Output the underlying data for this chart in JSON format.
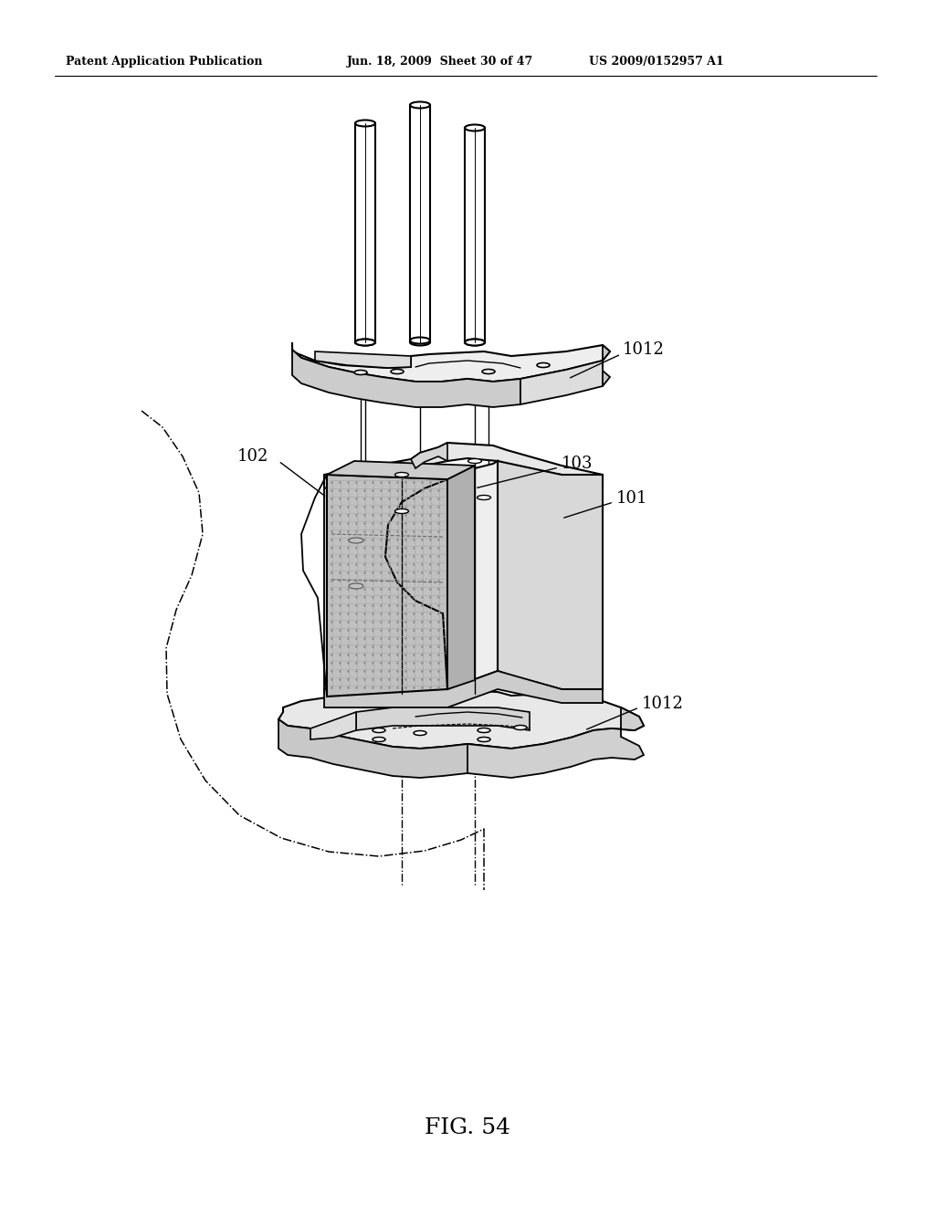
{
  "header_left": "Patent Application Publication",
  "header_center": "Jun. 18, 2009  Sheet 30 of 47",
  "header_right": "US 2009/0152957 A1",
  "background_color": "#ffffff",
  "fig_label": "FIG. 54",
  "label_1012_top": "1012",
  "label_1012_bot": "1012",
  "label_102": "102",
  "label_103": "103",
  "label_101": "101"
}
